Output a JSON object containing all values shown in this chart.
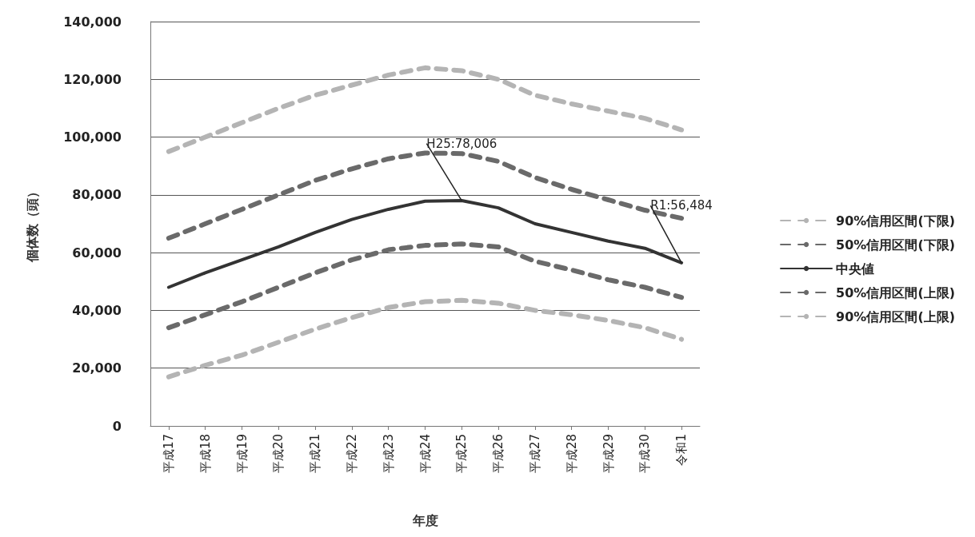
{
  "chart_data": {
    "type": "line",
    "xlabel": "年度",
    "ylabel": "個体数（頭）",
    "categories": [
      "平成17",
      "平成18",
      "平成19",
      "平成20",
      "平成21",
      "平成22",
      "平成23",
      "平成24",
      "平成25",
      "平成26",
      "平成27",
      "平成28",
      "平成29",
      "平成30",
      "令和1"
    ],
    "series": [
      {
        "name": "90%信用区間(下限)",
        "color": "#b4b4b4",
        "line_style": "dashed",
        "values": [
          95000,
          100000,
          105000,
          110000,
          114500,
          118000,
          121500,
          124000,
          123000,
          120000,
          114500,
          111500,
          109000,
          106500,
          102500
        ]
      },
      {
        "name": "50%信用区間(下限)",
        "color": "#6a6a6a",
        "line_style": "dashed",
        "values": [
          65000,
          70000,
          75000,
          80000,
          85000,
          89000,
          92500,
          94500,
          94300,
          91600,
          86000,
          81900,
          78300,
          74700,
          71900
        ]
      },
      {
        "name": "中央値",
        "color": "#333333",
        "line_style": "solid",
        "values": [
          48000,
          53000,
          57500,
          62000,
          67000,
          71500,
          75000,
          77800,
          78006,
          75500,
          70000,
          67000,
          64000,
          61500,
          56484
        ]
      },
      {
        "name": "50%信用区間(上限)",
        "color": "#6a6a6a",
        "line_style": "dashed",
        "values": [
          34000,
          38500,
          43000,
          48000,
          53000,
          57500,
          61000,
          62500,
          63000,
          62000,
          57000,
          54000,
          50600,
          48000,
          44500
        ]
      },
      {
        "name": "90%信用区間(上限)",
        "color": "#b4b4b4",
        "line_style": "dashed",
        "values": [
          17000,
          21000,
          24500,
          29000,
          33500,
          37500,
          41000,
          43000,
          43500,
          42500,
          40000,
          38500,
          36500,
          34000,
          30000
        ]
      }
    ],
    "ylim": [
      0,
      140000
    ],
    "yticks": [
      0,
      {
        "value": 20000,
        "label": "20,000"
      },
      {
        "value": 40000,
        "label": "40,000"
      },
      {
        "value": 60000,
        "label": "60,000"
      },
      {
        "value": 80000,
        "label": "80,000"
      },
      {
        "value": 100000,
        "label": "100,000"
      },
      {
        "value": 120000,
        "label": "120,000"
      },
      {
        "value": 140000,
        "label": "140,000"
      }
    ],
    "grid": "y",
    "legend": "right",
    "marker": "none",
    "annotations": [
      {
        "text": "H25:78,006",
        "x": "平成25",
        "y": 78006
      },
      {
        "text": "R1:56,484",
        "x": "令和1",
        "y": 56484
      }
    ]
  }
}
